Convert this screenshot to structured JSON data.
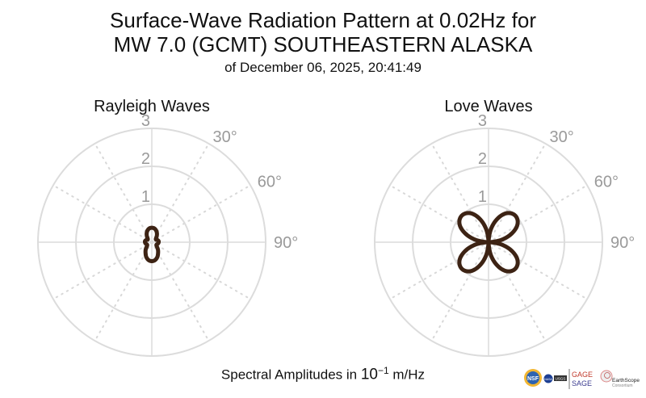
{
  "title_line1": "Surface-Wave Radiation Pattern at 0.02Hz for",
  "title_line2": "MW 7.0 (GCMT) SOUTHEASTERN ALASKA",
  "subtitle": "of December 06, 2025, 20:41:49",
  "footer": {
    "prefix": "Spectral Amplitudes in ",
    "base": "10",
    "exp": "−1",
    "suffix": " m/Hz"
  },
  "logos": {
    "nsf": "NSF",
    "nasa": "NASA",
    "usgs": "USGS",
    "gage": "GAGE",
    "sage": "SAGE",
    "earthscope": "EarthScope",
    "consortium": "Consortium"
  },
  "chart_data": [
    {
      "type": "polar-line",
      "title": "Rayleigh Waves",
      "rlim": [
        0,
        3
      ],
      "r_ticks": [
        "1",
        "2",
        "3"
      ],
      "angle_ticks": [
        "30°",
        "60°",
        "90°"
      ],
      "color": "#3d2314",
      "azimuth_deg": [
        0,
        10,
        20,
        30,
        40,
        50,
        60,
        70,
        80,
        90,
        100,
        110,
        120,
        130,
        140,
        150,
        160,
        170,
        180,
        190,
        200,
        210,
        220,
        230,
        240,
        250,
        260,
        270,
        280,
        290,
        300,
        310,
        320,
        330,
        340,
        350
      ],
      "amplitude": [
        0.38,
        0.37,
        0.33,
        0.27,
        0.2,
        0.14,
        0.13,
        0.16,
        0.18,
        0.18,
        0.17,
        0.15,
        0.14,
        0.17,
        0.25,
        0.33,
        0.42,
        0.48,
        0.5,
        0.48,
        0.42,
        0.33,
        0.25,
        0.17,
        0.14,
        0.15,
        0.17,
        0.18,
        0.18,
        0.16,
        0.13,
        0.14,
        0.2,
        0.27,
        0.33,
        0.37
      ]
    },
    {
      "type": "polar-line",
      "title": "Love Waves",
      "rlim": [
        0,
        3
      ],
      "r_ticks": [
        "1",
        "2",
        "3"
      ],
      "angle_ticks": [
        "30°",
        "60°",
        "90°"
      ],
      "color": "#3d2314",
      "azimuth_deg": [
        0,
        10,
        20,
        30,
        40,
        50,
        60,
        70,
        80,
        90,
        100,
        110,
        120,
        130,
        140,
        150,
        160,
        170,
        180,
        190,
        200,
        210,
        220,
        230,
        240,
        250,
        260,
        270,
        280,
        290,
        300,
        310,
        320,
        330,
        340,
        350
      ],
      "amplitude": [
        0,
        0.34,
        0.64,
        0.87,
        0.98,
        0.98,
        0.87,
        0.64,
        0.34,
        0,
        0.34,
        0.64,
        0.87,
        0.98,
        0.98,
        0.87,
        0.64,
        0.34,
        0,
        0.34,
        0.64,
        0.87,
        0.98,
        0.98,
        0.87,
        0.64,
        0.34,
        0,
        0.34,
        0.64,
        0.87,
        0.98,
        0.98,
        0.87,
        0.64,
        0.34
      ]
    }
  ]
}
